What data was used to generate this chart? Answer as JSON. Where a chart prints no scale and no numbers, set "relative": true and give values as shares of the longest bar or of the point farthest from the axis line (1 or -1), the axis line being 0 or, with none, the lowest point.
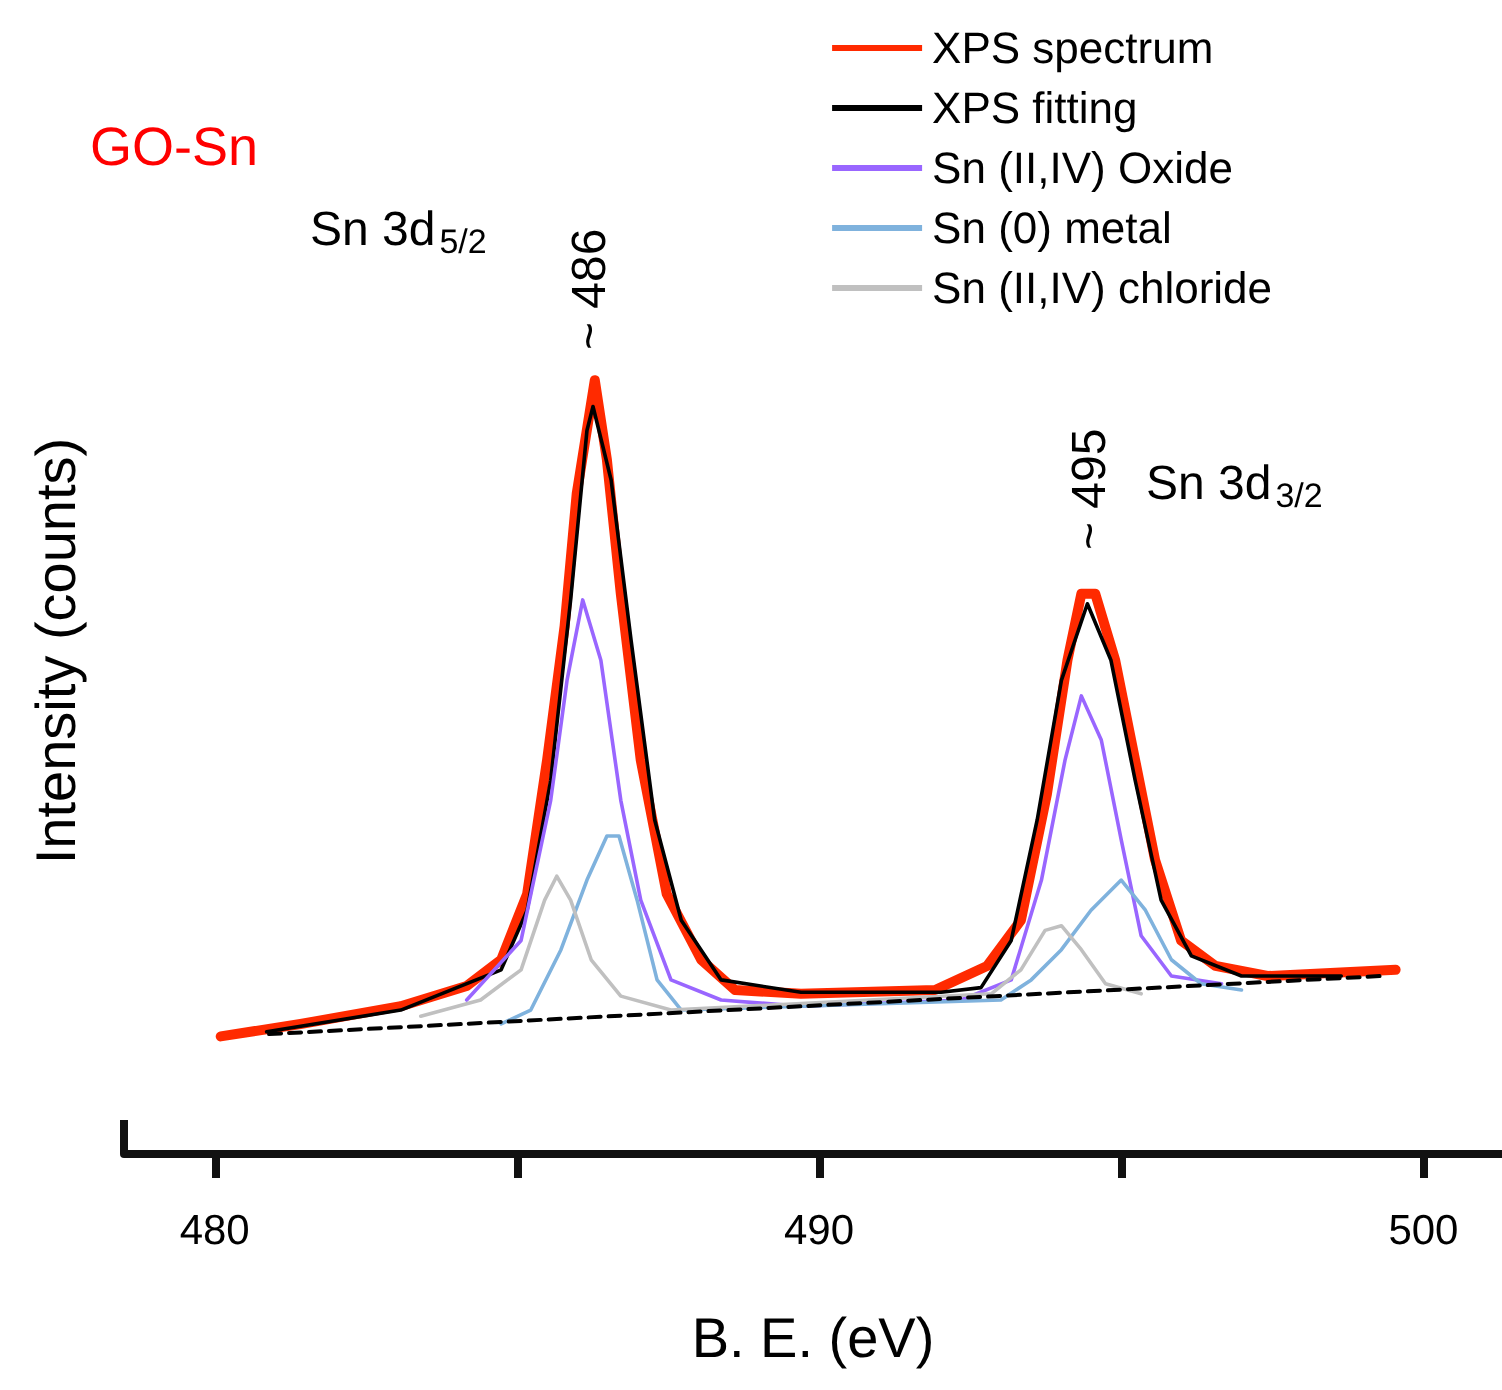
{
  "chart_data": {
    "type": "line",
    "title": "GO-Sn",
    "xlabel": "B. E. (eV)",
    "ylabel": "Intensity (counts)",
    "relative": true,
    "xlim": [
      478.5,
      501.3
    ],
    "xticks": [
      480,
      {
        "value": 485,
        "label": null
      },
      490,
      {
        "value": 495,
        "label": null
      },
      500
    ],
    "annotations": [
      "Sn 3d$_{5/2}$",
      "~ 486",
      "~ 495",
      "Sn 3d$_{3/2}$"
    ],
    "legend": "top right",
    "marker": "none",
    "line_style": "solid",
    "grid": false,
    "series": [
      {
        "name": "XPS spectrum",
        "color": "#ff2a00",
        "x": [
          480.1,
          481.42,
          483.08,
          484.17,
          484.74,
          485.17,
          485.5,
          485.79,
          485.99,
          486.29,
          486.49,
          486.72,
          487.05,
          487.48,
          488.05,
          488.61,
          489.7,
          491.92,
          492.78,
          493.34,
          493.77,
          494.11,
          494.34,
          494.57,
          494.9,
          495.23,
          495.56,
          495.99,
          496.56,
          497.42,
          499.54
        ],
        "values": [
          0.152,
          0.168,
          0.191,
          0.217,
          0.251,
          0.336,
          0.509,
          0.682,
          0.853,
          1.0,
          0.897,
          0.724,
          0.509,
          0.336,
          0.251,
          0.212,
          0.207,
          0.212,
          0.243,
          0.302,
          0.465,
          0.638,
          0.724,
          0.724,
          0.638,
          0.509,
          0.38,
          0.276,
          0.243,
          0.23,
          0.238
        ]
      },
      {
        "name": "XPS fitting",
        "color": "#000000",
        "x": [
          480.86,
          483.08,
          484.74,
          485.17,
          485.56,
          485.89,
          486.16,
          486.26,
          486.56,
          486.89,
          487.28,
          487.72,
          488.38,
          489.7,
          492.02,
          492.68,
          493.18,
          493.61,
          494.01,
          494.44,
          494.83,
          495.23,
          495.66,
          496.16,
          496.99,
          498.64
        ],
        "values": [
          0.158,
          0.186,
          0.238,
          0.315,
          0.483,
          0.716,
          0.935,
          0.966,
          0.871,
          0.664,
          0.432,
          0.302,
          0.225,
          0.209,
          0.209,
          0.215,
          0.276,
          0.432,
          0.612,
          0.711,
          0.638,
          0.483,
          0.328,
          0.256,
          0.23,
          0.23
        ]
      },
      {
        "name": "Sn (II,IV) Oxide",
        "color": "#9966ff",
        "x": [
          484.17,
          485.07,
          485.56,
          485.83,
          486.09,
          486.39,
          486.72,
          487.05,
          487.55,
          488.38,
          489.7,
          492.35,
          493.18,
          493.68,
          494.07,
          494.34,
          494.67,
          495.0,
          495.33,
          495.83,
          496.66
        ],
        "values": [
          0.199,
          0.276,
          0.457,
          0.612,
          0.716,
          0.638,
          0.457,
          0.328,
          0.225,
          0.199,
          0.191,
          0.199,
          0.225,
          0.354,
          0.509,
          0.592,
          0.535,
          0.406,
          0.282,
          0.23,
          0.22
        ]
      },
      {
        "name": "Sn (0) metal",
        "color": "#7fb2dd",
        "x": [
          484.74,
          485.23,
          485.73,
          486.16,
          486.49,
          486.69,
          486.99,
          487.32,
          487.72,
          489.7,
          493.01,
          493.51,
          494.01,
          494.5,
          495.0,
          495.4,
          495.83,
          496.32,
          496.99
        ],
        "values": [
          0.168,
          0.186,
          0.264,
          0.354,
          0.411,
          0.411,
          0.328,
          0.225,
          0.186,
          0.191,
          0.199,
          0.225,
          0.264,
          0.315,
          0.354,
          0.315,
          0.251,
          0.22,
          0.212
        ]
      },
      {
        "name": "Sn (II,IV) chloride",
        "color": "#c0c0c0",
        "x": [
          483.41,
          484.4,
          485.07,
          485.46,
          485.66,
          485.89,
          486.23,
          486.72,
          487.55,
          492.85,
          493.34,
          493.74,
          494.01,
          494.34,
          494.74,
          495.33
        ],
        "values": [
          0.178,
          0.199,
          0.238,
          0.328,
          0.359,
          0.328,
          0.251,
          0.204,
          0.186,
          0.207,
          0.238,
          0.289,
          0.295,
          0.264,
          0.22,
          0.207
        ]
      },
      {
        "color": "#000000",
        "line_style": "dashed",
        "x": [
          480.9,
          499.3
        ],
        "values": [
          0.155,
          0.23
        ]
      }
    ]
  }
}
